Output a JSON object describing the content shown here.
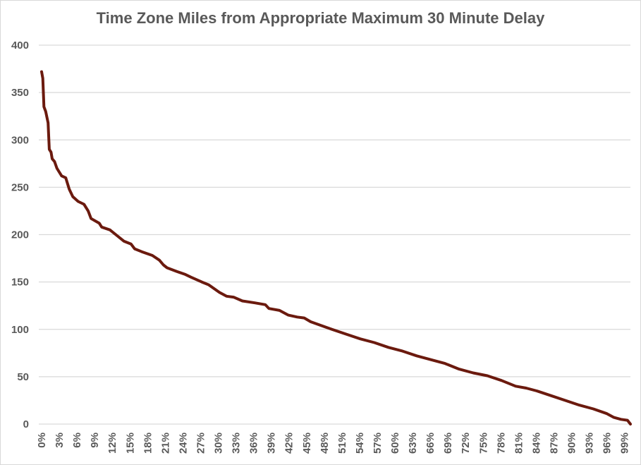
{
  "chart_data": {
    "type": "line",
    "title": "Time Zone Miles from Appropriate Maximum 30 Minute Delay",
    "xlabel": "",
    "ylabel": "",
    "ylim": [
      0,
      400
    ],
    "yticks": [
      0,
      50,
      100,
      150,
      200,
      250,
      300,
      350,
      400
    ],
    "xlim": [
      0,
      100
    ],
    "xtick_labels": [
      "0%",
      "3%",
      "6%",
      "9%",
      "12%",
      "15%",
      "18%",
      "21%",
      "24%",
      "27%",
      "30%",
      "33%",
      "36%",
      "39%",
      "42%",
      "45%",
      "48%",
      "51%",
      "54%",
      "57%",
      "60%",
      "63%",
      "66%",
      "69%",
      "72%",
      "75%",
      "78%",
      "81%",
      "84%",
      "87%",
      "90%",
      "93%",
      "96%",
      "99%"
    ],
    "grid": true,
    "legend": "none",
    "line_color": "#6b1a0e",
    "series": [
      {
        "x": [
          0,
          0.2,
          0.4,
          0.7,
          1.1,
          1.3,
          1.6,
          1.8,
          2.2,
          2.6,
          3.4,
          4.1,
          4.7,
          5.3,
          6.2,
          7.2,
          7.9,
          8.4,
          9.8,
          10.2,
          11.6,
          12.6,
          14.0,
          15.2,
          15.8,
          17.0,
          18.8,
          20.0,
          20.7,
          21.3,
          23.0,
          24.4,
          25.4,
          27.2,
          28.4,
          30.2,
          31.4,
          32.6,
          34.1,
          36.2,
          38.0,
          38.6,
          40.4,
          41.9,
          43.4,
          44.6,
          45.7,
          47.5,
          49.3,
          51.7,
          54.1,
          56.5,
          58.9,
          61.3,
          63.7,
          66.1,
          68.5,
          70.9,
          73.3,
          75.7,
          78.1,
          80.5,
          82.3,
          84.1,
          86.5,
          88.9,
          91.3,
          93.7,
          96.0,
          97.2,
          98.4,
          99.5,
          100
        ],
        "y": [
          372,
          365,
          335,
          330,
          318,
          290,
          287,
          280,
          277,
          270,
          262,
          260,
          248,
          240,
          235,
          232,
          225,
          217,
          212,
          208,
          205,
          200,
          193,
          190,
          185,
          182,
          178,
          173,
          168,
          165,
          161,
          158,
          155,
          150,
          147,
          139,
          135,
          134,
          130,
          128,
          126,
          122,
          120,
          115,
          113,
          112,
          108,
          104,
          100,
          95,
          90,
          86,
          81,
          77,
          72,
          68,
          64,
          58,
          54,
          51,
          46,
          40,
          38,
          35,
          30,
          25,
          20,
          16,
          11,
          7,
          5,
          4,
          0
        ]
      }
    ]
  }
}
